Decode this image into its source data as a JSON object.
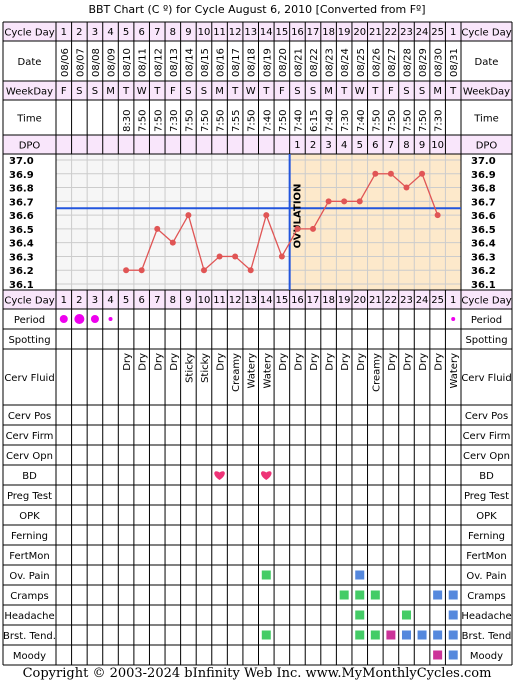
{
  "title": "BBT Chart (C º) for Cycle August 6, 2010  [Converted from Fº]",
  "footer": "Copyright © 2003-2024 bInfinity Web Inc.    www.MyMonthlyCycles.com",
  "labels": {
    "cycle_day": "Cycle Day",
    "date": "Date",
    "weekday": "WeekDay",
    "time": "Time",
    "dpo": "DPO",
    "ovulation": "OVULATION",
    "period": "Period",
    "spotting": "Spotting",
    "cerv_fluid": "Cerv Fluid",
    "cerv_pos": "Cerv Pos",
    "cerv_firm": "Cerv Firm",
    "cerv_opn": "Cerv Opn",
    "bd": "BD",
    "preg_test": "Preg Test",
    "opk": "OPK",
    "ferning": "Ferning",
    "fertmon": "FertMon",
    "ov_pain": "Ov. Pain",
    "cramps": "Cramps",
    "headache": "Headache",
    "brst_tend": "Brst. Tend.",
    "brst_tend_right": "Brst. Tend",
    "moody": "Moody"
  },
  "colors": {
    "header_bg": "#f9e6fb",
    "pre_ovulation_bg": "#f6f6f6",
    "post_ovulation_bg": "#fde9cb",
    "grid": "#cccccc",
    "line": "#e05555",
    "coverline": "#2255dd",
    "period_dot": "#ee00ee",
    "heart": "#ee3377",
    "green": "#44cc66",
    "blue": "#5588dd",
    "magenta": "#cc3399"
  },
  "chart_data": {
    "type": "line",
    "cycle_days": [
      "1",
      "2",
      "3",
      "4",
      "5",
      "6",
      "7",
      "8",
      "9",
      "10",
      "11",
      "12",
      "13",
      "14",
      "15",
      "16",
      "17",
      "18",
      "19",
      "20",
      "21",
      "22",
      "23",
      "24",
      "25",
      "1"
    ],
    "dates": [
      "08/06",
      "08/07",
      "08/08",
      "08/09",
      "08/10",
      "08/11",
      "08/12",
      "08/13",
      "08/14",
      "08/15",
      "08/16",
      "08/17",
      "08/18",
      "08/19",
      "08/20",
      "08/21",
      "08/22",
      "08/23",
      "08/24",
      "08/25",
      "08/26",
      "08/27",
      "08/28",
      "08/29",
      "08/30",
      "08/31"
    ],
    "weekdays": [
      "F",
      "S",
      "S",
      "M",
      "T",
      "W",
      "T",
      "F",
      "S",
      "S",
      "M",
      "T",
      "W",
      "T",
      "F",
      "S",
      "S",
      "M",
      "T",
      "W",
      "T",
      "F",
      "S",
      "S",
      "M",
      "T"
    ],
    "times": [
      "",
      "",
      "",
      "",
      "8:30",
      "7:50",
      "7:50",
      "7:30",
      "7:50",
      "7:50",
      "7:50",
      "7:55",
      "7:50",
      "7:40",
      "7:50",
      "7:40",
      "6:15",
      "7:40",
      "7:30",
      "7:40",
      "7:50",
      "7:50",
      "7:50",
      "7:50",
      "7:30",
      ""
    ],
    "dpo": [
      "",
      "",
      "",
      "",
      "",
      "",
      "",
      "",
      "",
      "",
      "",
      "",
      "",
      "",
      "",
      "1",
      "2",
      "3",
      "4",
      "5",
      "6",
      "7",
      "8",
      "9",
      "10",
      ""
    ],
    "y_ticks": [
      "37.0",
      "36.9",
      "36.8",
      "36.7",
      "36.6",
      "36.5",
      "36.4",
      "36.3",
      "36.2",
      "36.1"
    ],
    "ylim": [
      36.1,
      37.0
    ],
    "temperatures": [
      null,
      null,
      null,
      null,
      36.2,
      36.2,
      36.5,
      36.4,
      36.6,
      36.2,
      36.3,
      36.3,
      36.2,
      36.6,
      36.3,
      36.5,
      36.5,
      36.7,
      36.7,
      36.7,
      36.9,
      36.9,
      36.8,
      36.9,
      36.6,
      null
    ],
    "coverline": 36.65,
    "ovulation_day_index": 14,
    "period": [
      2,
      3,
      2,
      1,
      0,
      0,
      0,
      0,
      0,
      0,
      0,
      0,
      0,
      0,
      0,
      0,
      0,
      0,
      0,
      0,
      0,
      0,
      0,
      0,
      0,
      1
    ],
    "cerv_fluid": [
      "",
      "",
      "",
      "",
      "Dry",
      "Dry",
      "Dry",
      "Dry",
      "Sticky",
      "Sticky",
      "Dry",
      "Creamy",
      "Watery",
      "Watery",
      "Dry",
      "Dry",
      "Dry",
      "Dry",
      "Dry",
      "Dry",
      "Creamy",
      "Dry",
      "Dry",
      "Dry",
      "Dry",
      "Watery"
    ],
    "bd": [
      10,
      13
    ],
    "ov_pain": [
      [
        13,
        "green"
      ],
      [
        19,
        "blue"
      ]
    ],
    "cramps": [
      [
        18,
        "green"
      ],
      [
        19,
        "green"
      ],
      [
        20,
        "green"
      ],
      [
        24,
        "blue"
      ],
      [
        25,
        "blue"
      ]
    ],
    "headache": [
      [
        19,
        "green"
      ],
      [
        22,
        "green"
      ],
      [
        25,
        "blue"
      ]
    ],
    "brst_tend": [
      [
        13,
        "green"
      ],
      [
        19,
        "green"
      ],
      [
        20,
        "green"
      ],
      [
        21,
        "magenta"
      ],
      [
        22,
        "blue"
      ],
      [
        23,
        "blue"
      ],
      [
        24,
        "blue"
      ],
      [
        25,
        "blue"
      ]
    ],
    "moody": [
      [
        24,
        "magenta"
      ],
      [
        25,
        "blue"
      ]
    ]
  }
}
